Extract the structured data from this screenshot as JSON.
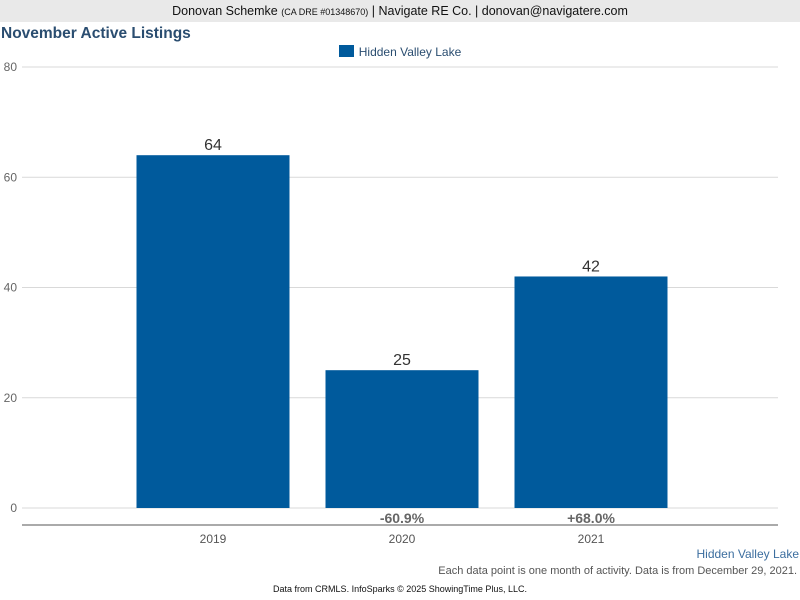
{
  "header": {
    "agent_name": "Donovan Schemke",
    "license": "(CA DRE #01348670)",
    "company_contact": "| Navigate RE Co. | donovan@navigatere.com"
  },
  "chart_data": {
    "type": "bar",
    "title": "November Active Listings",
    "categories": [
      "2019",
      "2020",
      "2021"
    ],
    "series": [
      {
        "name": "Hidden Valley Lake",
        "values": [
          64,
          25,
          42
        ],
        "color": "#005a9c"
      }
    ],
    "change_labels": [
      "",
      "-60.9%",
      "+68.0%"
    ],
    "ylim": [
      0,
      80
    ],
    "yticks": [
      0,
      20,
      40,
      60,
      80
    ],
    "grid": true,
    "legend_position": "top-center"
  },
  "footer": {
    "series_tag": "Hidden Valley Lake",
    "note": "Each data point is one month of activity. Data is from December 29, 2021.",
    "source": "Data from CRMLS. InfoSparks © 2025 ShowingTime Plus, LLC."
  }
}
